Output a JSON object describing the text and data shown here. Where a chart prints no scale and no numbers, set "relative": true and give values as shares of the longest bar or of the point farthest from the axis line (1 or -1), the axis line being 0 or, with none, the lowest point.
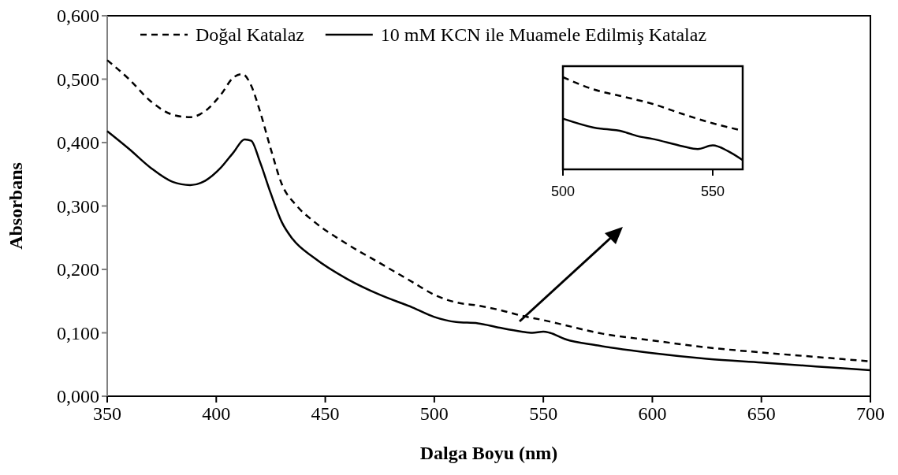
{
  "chart_data": [
    {
      "type": "line",
      "xlabel": "Dalga Boyu (nm)",
      "ylabel": "Absorbans",
      "xlim": [
        350,
        700
      ],
      "xticks": [
        350,
        400,
        450,
        500,
        550,
        600,
        650,
        700
      ],
      "ylim": [
        0,
        0.6
      ],
      "yticks": [
        {
          "value": 0,
          "label": "0,000"
        },
        {
          "value": 0.1,
          "label": "0,100"
        },
        {
          "value": 0.2,
          "label": "0,200"
        },
        {
          "value": 0.3,
          "label": "0,300"
        },
        {
          "value": 0.4,
          "label": "0,400"
        },
        {
          "value": 0.5,
          "label": "0,500"
        },
        {
          "value": 0.6,
          "label": "0,600"
        }
      ],
      "grid": false,
      "legend": "top",
      "series": [
        {
          "name": "Doğal Katalaz",
          "color": "#000000",
          "line_style": "dashed",
          "x": [
            350,
            360,
            370,
            380,
            388,
            395,
            402,
            408,
            412,
            416,
            420,
            425,
            430,
            437,
            445,
            460,
            475,
            490,
            500,
            510,
            520,
            530,
            540,
            550,
            560,
            575,
            600,
            625,
            650,
            675,
            700
          ],
          "values": [
            0.53,
            0.5,
            0.465,
            0.444,
            0.44,
            0.45,
            0.475,
            0.503,
            0.508,
            0.49,
            0.45,
            0.39,
            0.335,
            0.3,
            0.275,
            0.24,
            0.21,
            0.18,
            0.16,
            0.148,
            0.143,
            0.136,
            0.127,
            0.12,
            0.112,
            0.1,
            0.088,
            0.077,
            0.069,
            0.062,
            0.055
          ]
        },
        {
          "name": "10 mM KCN ile Muamele Edilmiş Katalaz",
          "color": "#000000",
          "line_style": "solid",
          "x": [
            350,
            360,
            370,
            380,
            388,
            395,
            402,
            408,
            413,
            416,
            420,
            425,
            430,
            435,
            445,
            460,
            475,
            490,
            500,
            510,
            520,
            530,
            540,
            545,
            550,
            553,
            560,
            575,
            600,
            625,
            650,
            675,
            700
          ],
          "values": [
            0.418,
            0.39,
            0.36,
            0.338,
            0.333,
            0.34,
            0.36,
            0.385,
            0.405,
            0.403,
            0.37,
            0.32,
            0.275,
            0.248,
            0.218,
            0.185,
            0.16,
            0.14,
            0.125,
            0.117,
            0.115,
            0.108,
            0.102,
            0.1,
            0.102,
            0.1,
            0.09,
            0.08,
            0.068,
            0.059,
            0.053,
            0.047,
            0.041
          ]
        }
      ]
    },
    {
      "type": "line",
      "relative": true,
      "xlim": [
        500,
        560
      ],
      "xticks": [
        500,
        550
      ],
      "series": [
        {
          "color": "#000000",
          "line_style": "dashed",
          "x": [
            500,
            510,
            520,
            530,
            540,
            550,
            560
          ],
          "values": [
            1.0,
            0.87,
            0.79,
            0.71,
            0.6,
            0.5,
            0.42
          ]
        },
        {
          "color": "#000000",
          "line_style": "solid",
          "x": [
            500,
            510,
            520,
            525,
            530,
            540,
            545,
            550,
            555,
            560
          ],
          "values": [
            0.55,
            0.455,
            0.41,
            0.36,
            0.33,
            0.25,
            0.22,
            0.26,
            0.2,
            0.1
          ]
        }
      ]
    }
  ]
}
